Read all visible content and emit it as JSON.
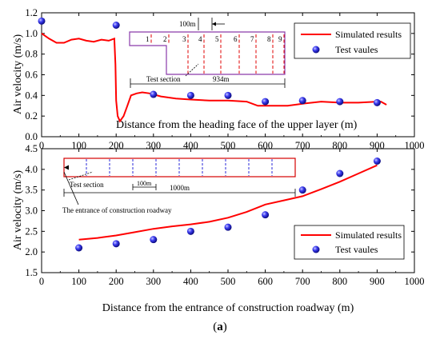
{
  "chart_data": [
    {
      "type": "line",
      "panel": "top",
      "xlabel": "Distance from the heading face of the upper layer (m)",
      "ylabel": "Air velocity (m/s)",
      "xlim": [
        0,
        1000
      ],
      "ylim": [
        0,
        1.2
      ],
      "xticks": [
        0,
        100,
        200,
        300,
        400,
        500,
        600,
        700,
        800,
        900,
        1000
      ],
      "yticks": [
        0.0,
        0.2,
        0.4,
        0.6,
        0.8,
        1.0,
        1.2
      ],
      "grid": false,
      "legend_position": "top-right",
      "series": [
        {
          "name": "Simulated results",
          "kind": "line",
          "color": "#ff0000",
          "points": [
            [
              0,
              1.0
            ],
            [
              20,
              0.95
            ],
            [
              40,
              0.91
            ],
            [
              60,
              0.91
            ],
            [
              80,
              0.94
            ],
            [
              100,
              0.95
            ],
            [
              120,
              0.93
            ],
            [
              140,
              0.92
            ],
            [
              160,
              0.94
            ],
            [
              180,
              0.93
            ],
            [
              195,
              0.95
            ],
            [
              198,
              0.7
            ],
            [
              200,
              0.35
            ],
            [
              204,
              0.2
            ],
            [
              210,
              0.15
            ],
            [
              220,
              0.2
            ],
            [
              230,
              0.3
            ],
            [
              240,
              0.4
            ],
            [
              255,
              0.42
            ],
            [
              270,
              0.43
            ],
            [
              290,
              0.42
            ],
            [
              320,
              0.39
            ],
            [
              360,
              0.37
            ],
            [
              400,
              0.36
            ],
            [
              450,
              0.35
            ],
            [
              500,
              0.35
            ],
            [
              550,
              0.34
            ],
            [
              580,
              0.3
            ],
            [
              620,
              0.3
            ],
            [
              660,
              0.3
            ],
            [
              700,
              0.32
            ],
            [
              750,
              0.34
            ],
            [
              800,
              0.33
            ],
            [
              850,
              0.33
            ],
            [
              900,
              0.34
            ],
            [
              910,
              0.34
            ],
            [
              925,
              0.31
            ]
          ]
        },
        {
          "name": "Test vaules",
          "kind": "scatter",
          "color": "#2a2ad8",
          "points": [
            [
              0,
              1.12
            ],
            [
              200,
              1.08
            ],
            [
              300,
              0.41
            ],
            [
              400,
              0.4
            ],
            [
              500,
              0.4
            ],
            [
              600,
              0.34
            ],
            [
              700,
              0.35
            ],
            [
              800,
              0.34
            ],
            [
              900,
              0.33
            ]
          ]
        }
      ],
      "annotations": {
        "dim_top": "100m",
        "section_numbers": [
          "1",
          "2",
          "3",
          "4",
          "5",
          "6",
          "7",
          "8",
          "9"
        ],
        "test_section_label": "Test section",
        "length_label": "934m"
      }
    },
    {
      "type": "line",
      "panel": "bottom",
      "xlabel": "Distance from the entrance of construction roadway (m)",
      "ylabel": "Air velocity (m/s)",
      "xlim": [
        0,
        1000
      ],
      "ylim": [
        1.5,
        4.5
      ],
      "xticks": [
        0,
        100,
        200,
        300,
        400,
        500,
        600,
        700,
        800,
        900,
        1000
      ],
      "yticks": [
        1.5,
        2.0,
        2.5,
        3.0,
        3.5,
        4.0,
        4.5
      ],
      "grid": false,
      "legend_position": "bottom-right",
      "series": [
        {
          "name": "Simulated results",
          "kind": "line",
          "color": "#ff0000",
          "points": [
            [
              100,
              2.3
            ],
            [
              150,
              2.34
            ],
            [
              200,
              2.4
            ],
            [
              250,
              2.48
            ],
            [
              300,
              2.56
            ],
            [
              350,
              2.62
            ],
            [
              400,
              2.67
            ],
            [
              450,
              2.73
            ],
            [
              500,
              2.83
            ],
            [
              550,
              2.97
            ],
            [
              600,
              3.15
            ],
            [
              650,
              3.25
            ],
            [
              700,
              3.35
            ],
            [
              750,
              3.52
            ],
            [
              800,
              3.7
            ],
            [
              850,
              3.9
            ],
            [
              900,
              4.1
            ]
          ]
        },
        {
          "name": "Test vaules",
          "kind": "scatter",
          "color": "#2a2ad8",
          "points": [
            [
              100,
              2.1
            ],
            [
              200,
              2.2
            ],
            [
              300,
              2.3
            ],
            [
              400,
              2.5
            ],
            [
              500,
              2.6
            ],
            [
              600,
              2.9
            ],
            [
              700,
              3.5
            ],
            [
              800,
              3.9
            ],
            [
              900,
              4.2
            ]
          ]
        }
      ],
      "annotations": {
        "test_section_label": "Test section",
        "dim_label": "100m",
        "length_label": "1000m",
        "entrance_label": "The entrance of construction roadway"
      }
    }
  ],
  "caption": {
    "open": "(",
    "letter": "a",
    "close": ")"
  }
}
